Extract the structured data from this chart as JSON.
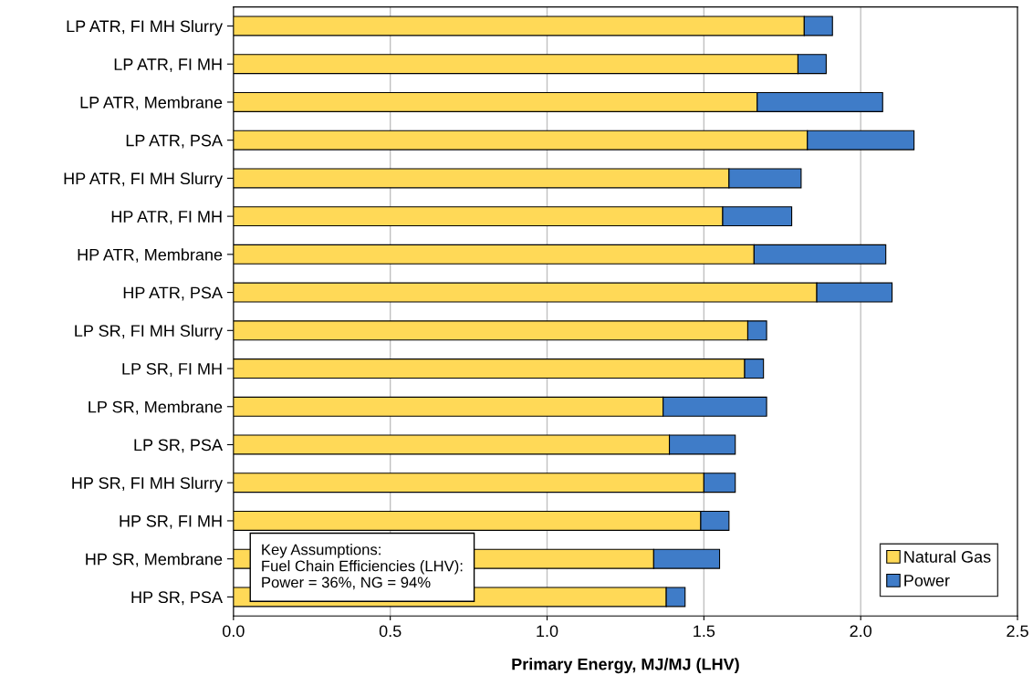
{
  "chart_data": {
    "type": "bar",
    "orientation": "horizontal",
    "stacked": true,
    "xlabel": "Primary Energy, MJ/MJ (LHV)",
    "categories": [
      "LP ATR, FI MH Slurry",
      "LP ATR, FI MH",
      "LP ATR, Membrane",
      "LP ATR, PSA",
      "HP ATR, FI MH Slurry",
      "HP ATR, FI MH",
      "HP ATR, Membrane",
      "HP ATR, PSA",
      "LP SR, FI MH Slurry",
      "LP SR, FI MH",
      "LP SR, Membrane",
      "LP SR, PSA",
      "HP SR, FI MH Slurry",
      "HP SR, FI MH",
      "HP SR, Membrane",
      "HP SR, PSA"
    ],
    "series": [
      {
        "name": "Natural Gas",
        "color": "#ffd957",
        "values": [
          1.82,
          1.8,
          1.67,
          1.83,
          1.58,
          1.56,
          1.66,
          1.86,
          1.64,
          1.63,
          1.37,
          1.39,
          1.5,
          1.49,
          1.34,
          1.38
        ]
      },
      {
        "name": "Power",
        "color": "#3f7cc8",
        "values": [
          0.09,
          0.09,
          0.4,
          0.34,
          0.23,
          0.22,
          0.42,
          0.24,
          0.06,
          0.06,
          0.33,
          0.21,
          0.1,
          0.09,
          0.21,
          0.06
        ]
      }
    ],
    "xlim": [
      0,
      2.5
    ],
    "xticks": [
      {
        "value": 0,
        "label": "0.0"
      },
      0.5,
      {
        "value": 1,
        "label": "1.0"
      },
      1.5,
      {
        "value": 2,
        "label": "2.0"
      },
      2.5
    ],
    "grid": "x",
    "legend": "bottom right",
    "annotations": [
      "Key Assumptions:\nFuel Chain Efficiencies (LHV):\nPower = 36%, NG = 94%"
    ]
  }
}
